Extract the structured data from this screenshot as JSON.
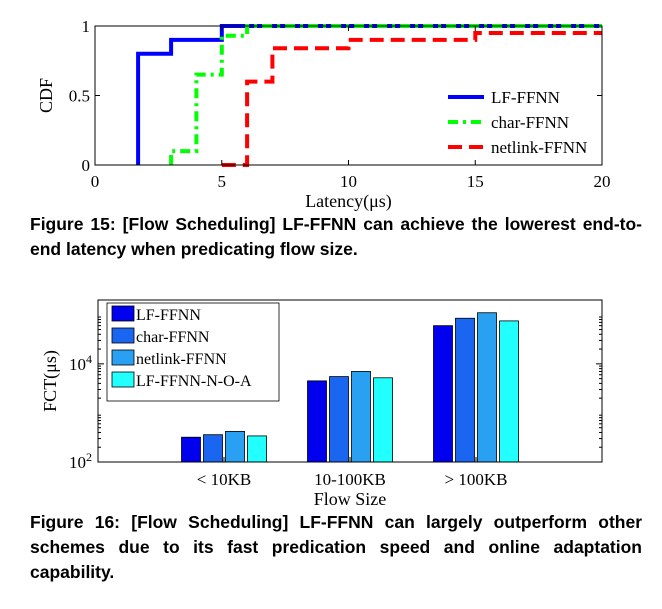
{
  "chart_data": [
    {
      "type": "line",
      "step": true,
      "xlabel": "Latency(μs)",
      "ylabel": "CDF",
      "xlim": [
        0,
        20
      ],
      "ylim": [
        0,
        1
      ],
      "x_ticks": [
        "0",
        "5",
        "10",
        "15",
        "20"
      ],
      "y_ticks": [
        "0",
        "0.5",
        "1"
      ],
      "legend_position": "bottom-right",
      "series": [
        {
          "name": "LF-FFNN",
          "color": "#0000ff",
          "style": "solid",
          "points": [
            [
              1.7,
              0
            ],
            [
              1.7,
              0.8
            ],
            [
              3,
              0.8
            ],
            [
              3,
              0.9
            ],
            [
              5,
              0.9
            ],
            [
              5,
              1
            ],
            [
              20,
              1
            ]
          ]
        },
        {
          "name": "char-FFNN",
          "color": "#00ff00",
          "style": "dashdot",
          "points": [
            [
              3,
              0
            ],
            [
              3,
              0.1
            ],
            [
              4,
              0.1
            ],
            [
              4,
              0.65
            ],
            [
              5,
              0.65
            ],
            [
              5,
              0.93
            ],
            [
              6,
              0.93
            ],
            [
              6,
              1
            ],
            [
              20,
              1
            ]
          ]
        },
        {
          "name": "netlink-FFNN",
          "color": "#ff0000",
          "style": "dashed",
          "points": [
            [
              5,
              0
            ],
            [
              6,
              0
            ],
            [
              6,
              0.6
            ],
            [
              7,
              0.6
            ],
            [
              7,
              0.84
            ],
            [
              10,
              0.84
            ],
            [
              10,
              0.9
            ],
            [
              15,
              0.9
            ],
            [
              15,
              0.95
            ],
            [
              20,
              0.95
            ]
          ]
        }
      ]
    },
    {
      "type": "bar",
      "xlabel": "Flow Size",
      "ylabel": "FCT(μs)",
      "y_scale": "log",
      "ylim": [
        100,
        200000
      ],
      "y_ticks": [
        "10^2",
        "10^4"
      ],
      "legend_position": "top-left",
      "categories": [
        "< 10KB",
        "10-100KB",
        "> 100KB"
      ],
      "series": [
        {
          "name": "LF-FFNN",
          "color": "#0000ee",
          "values": [
            320,
            4500,
            60000
          ]
        },
        {
          "name": "char-FFNN",
          "color": "#1a66f0",
          "values": [
            360,
            5500,
            85000
          ]
        },
        {
          "name": "netlink-FFNN",
          "color": "#2aa0f2",
          "values": [
            420,
            7000,
            110000
          ]
        },
        {
          "name": "LF-FFNN-N-O-A",
          "color": "#22ffff",
          "values": [
            340,
            5200,
            75000
          ]
        }
      ]
    }
  ],
  "captions": {
    "fig15": "Figure 15: [Flow Scheduling] LF-FFNN can achieve the lowerest end-to-end latency when predicating flow size.",
    "fig16": "Figure 16: [Flow Scheduling] LF-FFNN can largely outperform other schemes due to its fast predication speed and online adaptation capability."
  }
}
